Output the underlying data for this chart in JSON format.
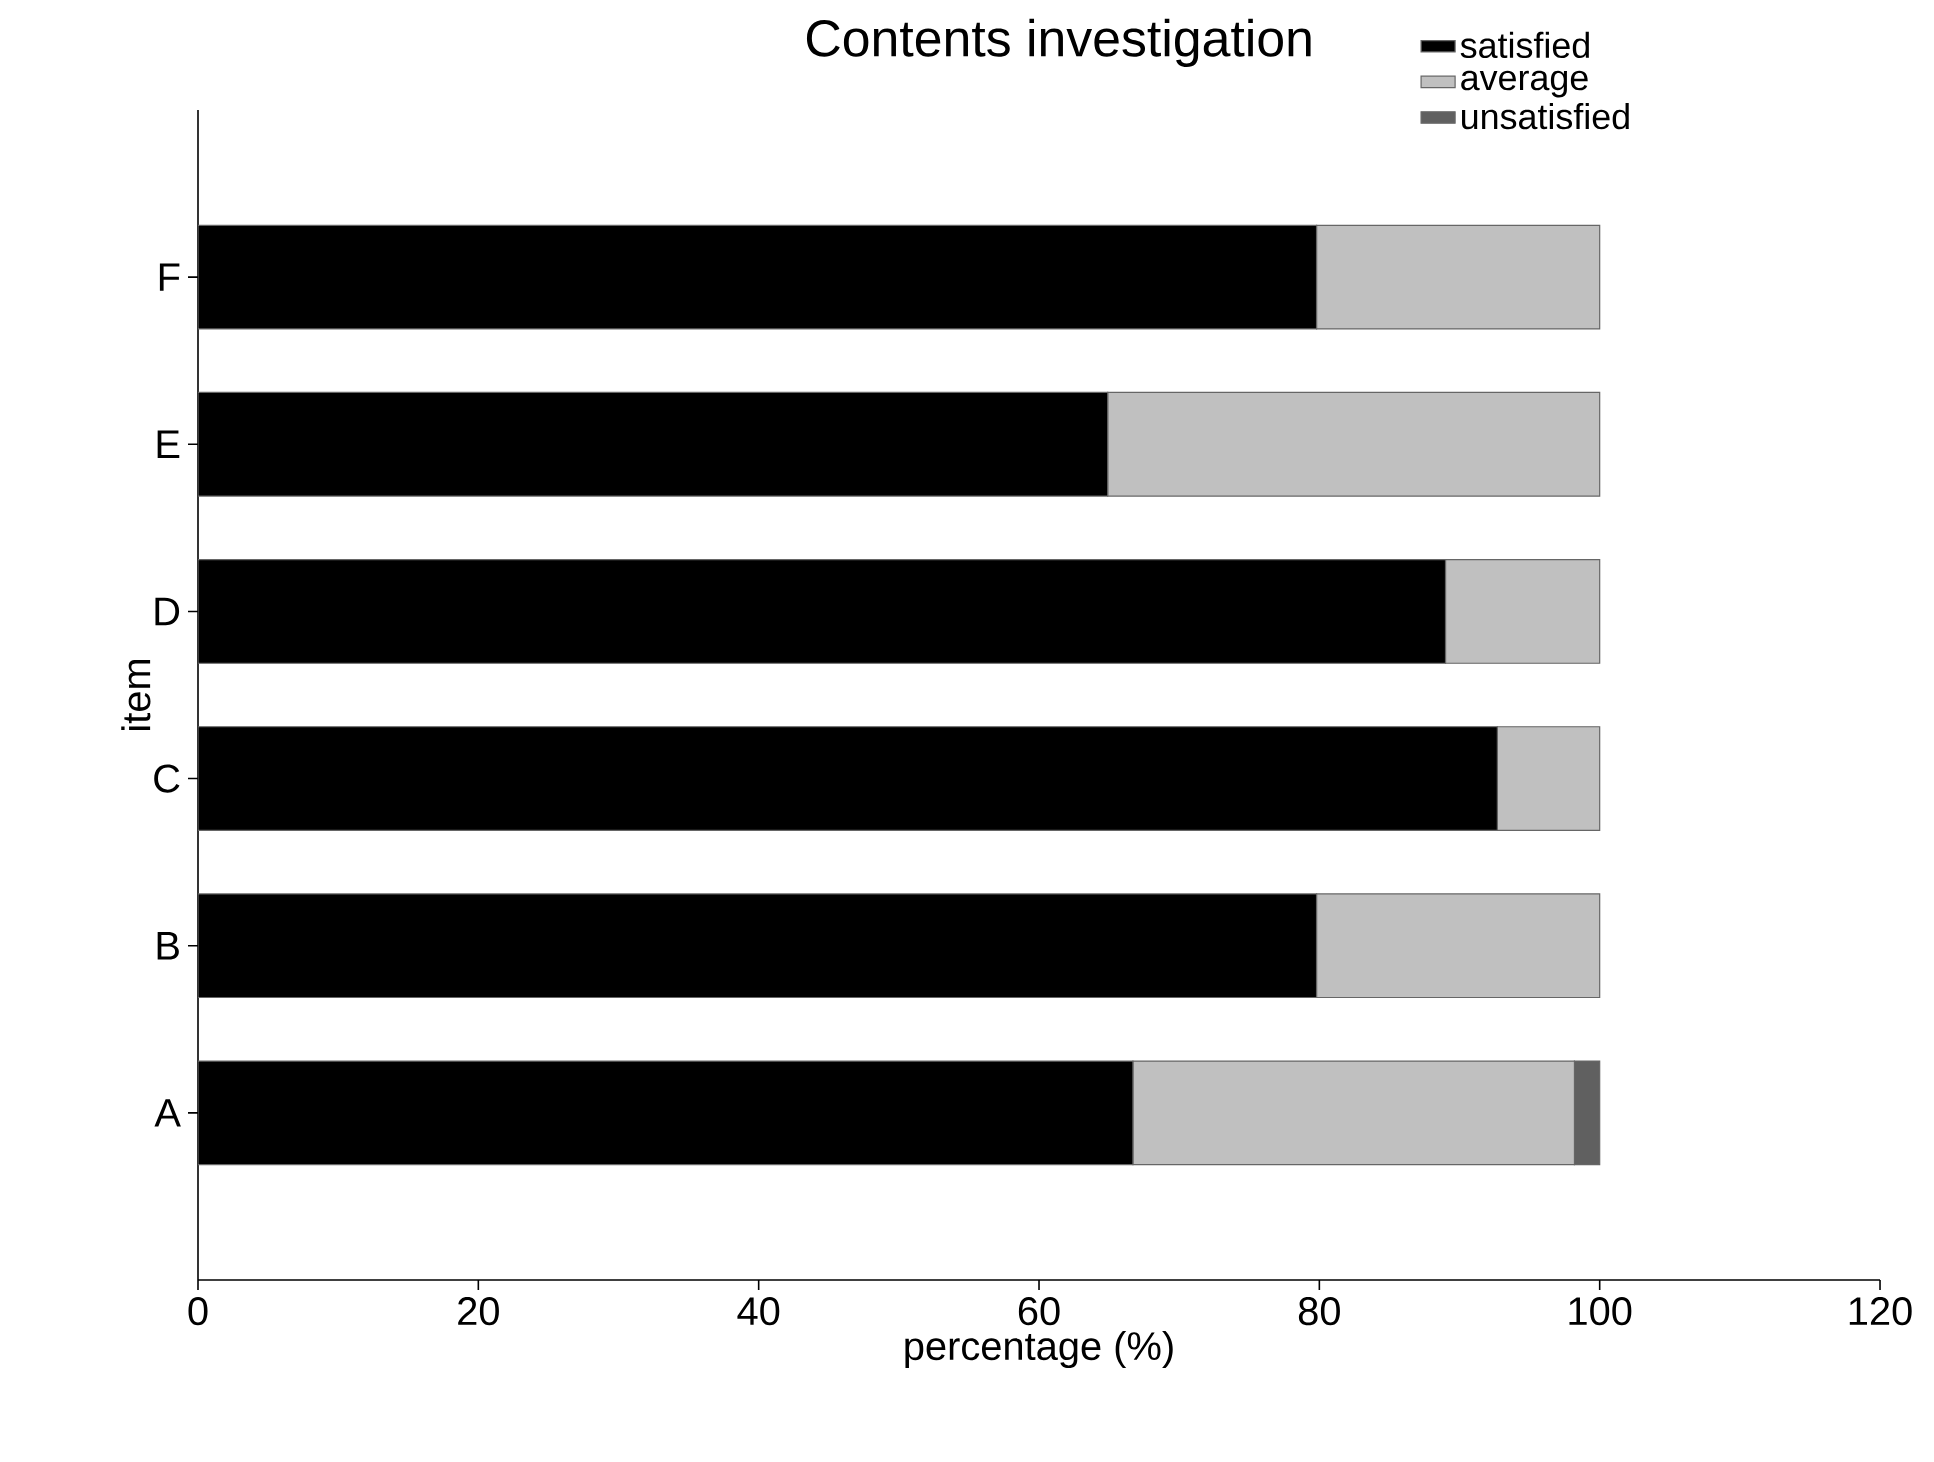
{
  "chart_data": {
    "type": "bar",
    "orientation": "horizontal",
    "stacked": true,
    "title": "Contents investigation",
    "xlabel": "percentage (%)",
    "ylabel": "item",
    "categories": [
      "F",
      "E",
      "D",
      "C",
      "B",
      "A"
    ],
    "series": [
      {
        "name": "satisfied",
        "color": "#000000",
        "values": [
          79.8,
          64.9,
          89.0,
          92.7,
          79.8,
          66.7
        ]
      },
      {
        "name": "average",
        "color": "#c0c0c0",
        "values": [
          20.2,
          35.1,
          11.0,
          7.3,
          20.2,
          31.5
        ]
      },
      {
        "name": "unsatisfied",
        "color": "#606060",
        "values": [
          0,
          0,
          0,
          0,
          0,
          1.8
        ]
      }
    ],
    "xlim": [
      0,
      120
    ],
    "xticks": [
      0,
      20,
      40,
      60,
      80,
      100,
      120
    ],
    "grid": false,
    "legend": "top right"
  }
}
